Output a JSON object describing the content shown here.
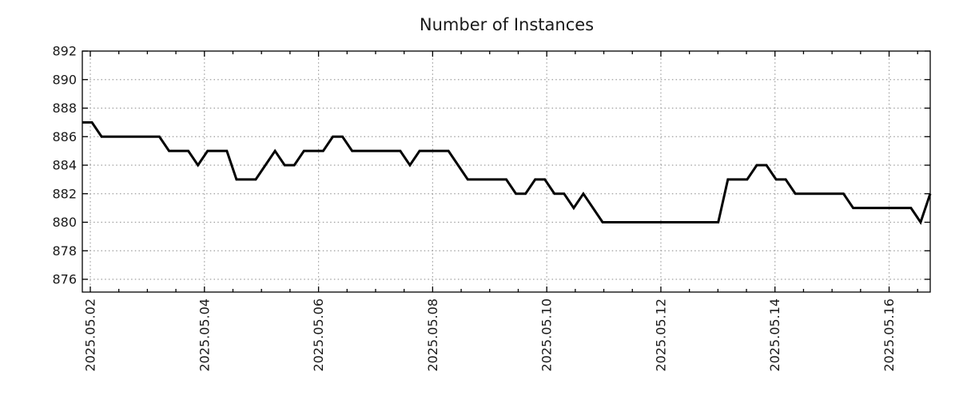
{
  "chart_data": {
    "type": "line",
    "title": "Number of Instances",
    "line_color": "#000000",
    "grid_color": "#9e9e9e",
    "axis_color": "#000000",
    "text_color": "#1a1a1a",
    "grid_style": "dotted",
    "legend": "none",
    "ylim": [
      875.1,
      892
    ],
    "y_ticks": [
      876,
      878,
      880,
      882,
      884,
      886,
      888,
      890,
      892
    ],
    "x_tick_labels": [
      "2025.05.02",
      "2025.05.04",
      "2025.05.06",
      "2025.05.08",
      "2025.05.10",
      "2025.05.12",
      "2025.05.14",
      "2025.05.16"
    ],
    "series": [
      {
        "name": "Number of Instances",
        "values": [
          887,
          887,
          886,
          886,
          886,
          886,
          886,
          886,
          886,
          885,
          885,
          885,
          884,
          885,
          885,
          885,
          883,
          883,
          883,
          884,
          885,
          884,
          884,
          885,
          885,
          885,
          886,
          886,
          885,
          885,
          885,
          885,
          885,
          885,
          884,
          885,
          885,
          885,
          885,
          884,
          883,
          883,
          883,
          883,
          883,
          882,
          882,
          883,
          883,
          882,
          882,
          881,
          882,
          881,
          880,
          880,
          880,
          880,
          880,
          880,
          880,
          880,
          880,
          880,
          880,
          880,
          880,
          883,
          883,
          883,
          884,
          884,
          883,
          883,
          882,
          882,
          882,
          882,
          882,
          882,
          881,
          881,
          881,
          881,
          881,
          881,
          881,
          880,
          882
        ]
      }
    ]
  }
}
